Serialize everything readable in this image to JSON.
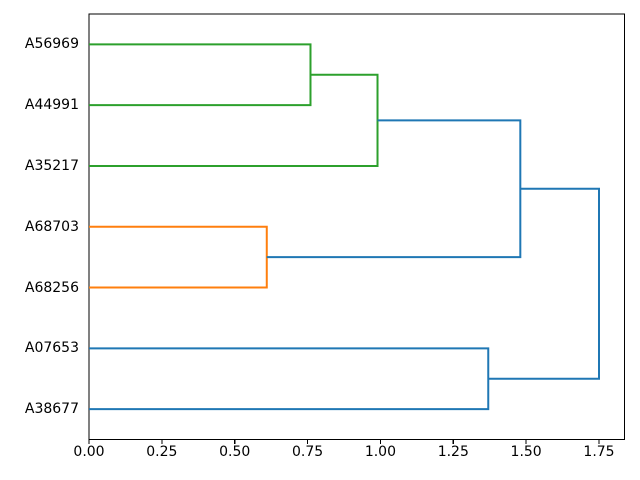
{
  "chart_data": {
    "type": "dendrogram",
    "title": "",
    "orientation": "right",
    "grid": false,
    "legend": false,
    "leaves": [
      "A56969",
      "A44991",
      "A35217",
      "A68703",
      "A68256",
      "A07653",
      "A38677"
    ],
    "links": [
      {
        "id": "L1",
        "children": [
          "A56969",
          "A44991"
        ],
        "distance": 0.76,
        "color_key": "green"
      },
      {
        "id": "L2",
        "children": [
          "L1",
          "A35217"
        ],
        "distance": 0.99,
        "color_key": "green"
      },
      {
        "id": "L3",
        "children": [
          "A68703",
          "A68256"
        ],
        "distance": 0.61,
        "color_key": "orange"
      },
      {
        "id": "L4",
        "children": [
          "A07653",
          "A38677"
        ],
        "distance": 1.37,
        "color_key": "blue"
      },
      {
        "id": "L5",
        "children": [
          "L2",
          "L3"
        ],
        "distance": 1.48,
        "color_key": "blue"
      },
      {
        "id": "L6",
        "children": [
          "L5",
          "L4"
        ],
        "distance": 1.75,
        "color_key": "blue"
      }
    ],
    "x_axis": {
      "ticks": [
        0,
        0.25,
        0.5,
        0.75,
        1.0,
        1.25,
        1.5,
        1.75
      ],
      "tick_labels": [
        "0.00",
        "0.25",
        "0.50",
        "0.75",
        "1.00",
        "1.25",
        "1.50",
        "1.75"
      ],
      "lim": [
        0,
        1.8375
      ]
    },
    "y_axis": {
      "tick_labels": [
        "A56969",
        "A44991",
        "A35217",
        "A68703",
        "A68256",
        "A07653",
        "A38677"
      ],
      "lim": [
        0,
        70
      ]
    },
    "colors": {
      "blue": "#1f77b4",
      "orange": "#ff7f0e",
      "green": "#2ca02c",
      "axis": "#000000",
      "text": "#000000",
      "background": "#ffffff"
    }
  }
}
